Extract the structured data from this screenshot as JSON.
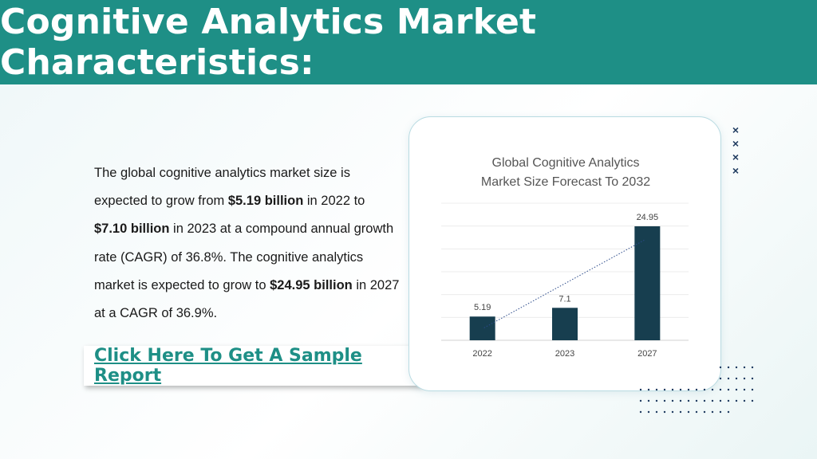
{
  "header": {
    "title": "Cognitive Analytics Market Characteristics:"
  },
  "body": {
    "p1": "The global cognitive analytics market size is expected to grow from ",
    "b1": "$5.19 billion",
    "p2": " in 2022 to ",
    "b2": "$7.10 billion",
    "p3": " in 2023 at a compound annual growth rate (CAGR) of 36.8%. The cognitive analytics market is expected to grow to ",
    "b3": "$24.95 billion",
    "p4": " in 2027 at a CAGR of 36.9%."
  },
  "cta": {
    "label": "Click Here To Get A Sample Report"
  },
  "decor": {
    "x_marks": [
      "×",
      "×",
      "×",
      "×"
    ]
  },
  "chart_data": {
    "type": "bar",
    "title_line1": "Global Cognitive Analytics",
    "title_line2": "Market Size Forecast To 2032",
    "categories": [
      "2022",
      "2023",
      "2027"
    ],
    "values": [
      5.19,
      7.1,
      24.95
    ],
    "value_labels": [
      "5.19",
      "7.1",
      "24.95"
    ],
    "ylim": [
      0,
      30
    ],
    "trendline": "dotted linear",
    "grid": true,
    "bar_color": "#173e4f"
  }
}
